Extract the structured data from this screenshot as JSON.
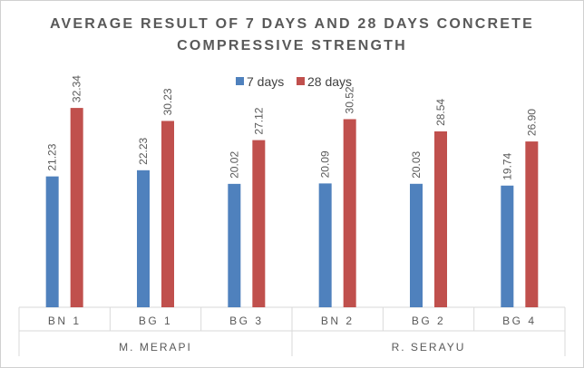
{
  "chart_data": {
    "type": "bar",
    "title": "AVERAGE RESULT OF 7 DAYS AND 28 DAYS CONCRETE COMPRESSIVE STRENGTH",
    "title_lines": [
      "AVERAGE RESULT OF 7 DAYS AND 28 DAYS CONCRETE",
      "COMPRESSIVE STRENGTH"
    ],
    "categories": [
      "BN 1",
      "BG 1",
      "BG 3",
      "BN 2",
      "BG 2",
      "BG 4"
    ],
    "groups": [
      {
        "label": "M. MERAPI",
        "categories": [
          "BN 1",
          "BG 1",
          "BG 3"
        ]
      },
      {
        "label": "R. SERAYU",
        "categories": [
          "BN 2",
          "BG 2",
          "BG 4"
        ]
      }
    ],
    "series": [
      {
        "name": "7 days",
        "color": "#4f81bd",
        "values": [
          21.23,
          22.23,
          20.02,
          20.09,
          20.03,
          19.74
        ],
        "labels": [
          "21.23",
          "22.23",
          "20.02",
          "20.09",
          "20.03",
          "19.74"
        ]
      },
      {
        "name": "28 days",
        "color": "#c0504d",
        "values": [
          32.34,
          30.23,
          27.12,
          30.52,
          28.54,
          26.9
        ],
        "labels": [
          "32.34",
          "30.23",
          "27.12",
          "30.52",
          "28.54",
          "26.90"
        ]
      }
    ],
    "ylim": [
      0,
      35
    ],
    "grid": false,
    "legend_position": "top"
  }
}
